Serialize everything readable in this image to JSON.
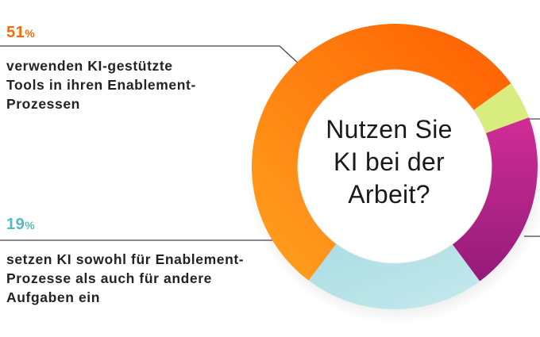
{
  "chart_data": {
    "type": "pie",
    "style": "donut",
    "center_title_lines": [
      "Nutzen Sie",
      "KI bei der",
      "Arbeit?"
    ],
    "slices": [
      {
        "value": 51,
        "color": "#ff7a12"
      },
      {
        "value": 4,
        "color": "#d9ec7e"
      },
      {
        "value": 19,
        "color": "#c2278c"
      },
      {
        "value": 19,
        "color": "#b3e0e4"
      }
    ],
    "callouts": [
      {
        "value": "51",
        "unit": "%",
        "text_lines": [
          "verwenden KI-gestützte",
          "Tools in ihren Enablement-",
          "Prozessen"
        ]
      },
      {
        "value": "19",
        "unit": "%",
        "text_lines": [
          "setzen KI sowohl für Enablement-",
          "Prozesse als auch für andere",
          "Aufgaben ein"
        ]
      }
    ]
  }
}
